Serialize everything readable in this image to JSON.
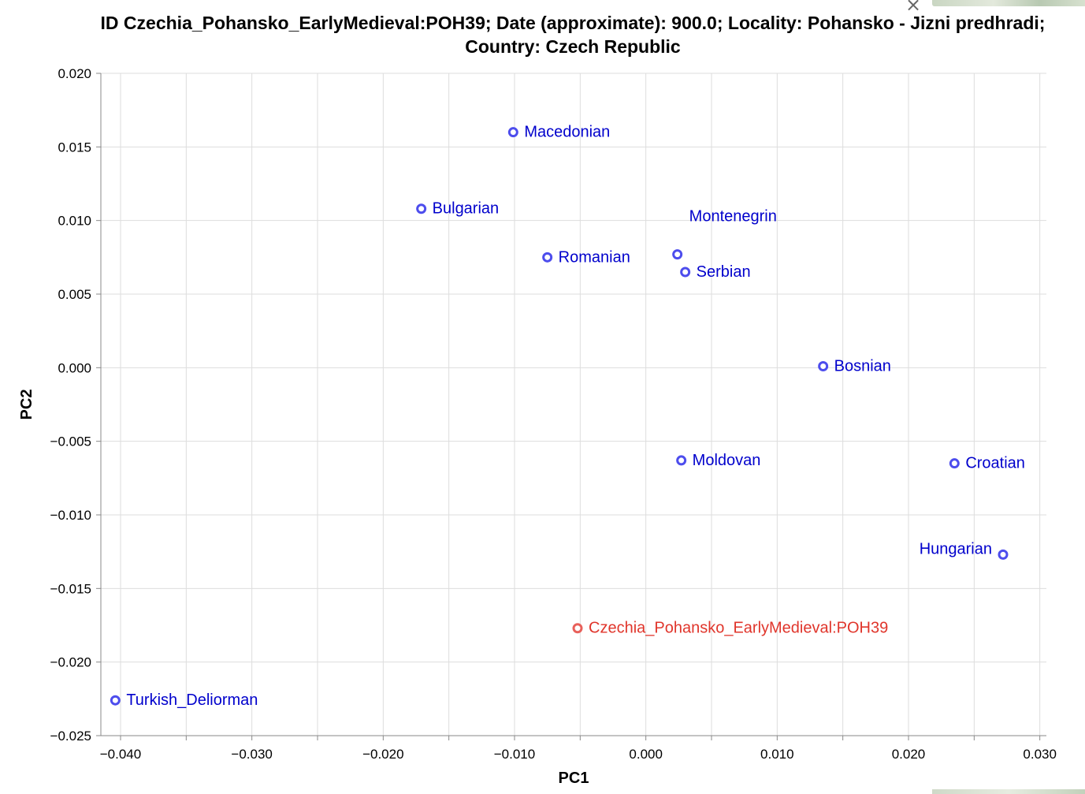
{
  "window": {
    "close_label": "×"
  },
  "chart_data": {
    "type": "scatter",
    "title": "ID Czechia_Pohansko_EarlyMedieval:POH39; Date (approximate): 900.0; Locality: Pohansko - Jizni predhradi; Country: Czech Republic",
    "xlabel": "PC1",
    "ylabel": "PC2",
    "xlim": [
      -0.0415,
      0.0305
    ],
    "ylim": [
      -0.025,
      0.02
    ],
    "xticks": [
      -0.04,
      -0.03,
      -0.02,
      -0.01,
      0.0,
      0.01,
      0.02,
      0.03
    ],
    "xtick_labels": [
      "−0.040",
      "−0.030",
      "−0.020",
      "−0.010",
      "0.000",
      "0.010",
      "0.020",
      "0.030"
    ],
    "yticks": [
      0.02,
      0.015,
      0.01,
      0.005,
      0.0,
      -0.005,
      -0.01,
      -0.015,
      -0.02,
      -0.025
    ],
    "ytick_labels": [
      "0.020",
      "0.015",
      "0.010",
      "0.005",
      "0.000",
      "−0.005",
      "−0.010",
      "−0.015",
      "−0.020",
      "−0.025"
    ],
    "grid": true,
    "colors": {
      "population": "#4d4ded",
      "population_label": "#0000cc",
      "sample": "#e8605a",
      "sample_label": "#e0352b"
    },
    "points": [
      {
        "label": "Macedonian",
        "x": -0.0101,
        "y": 0.016,
        "kind": "population",
        "label_pos": "right"
      },
      {
        "label": "Bulgarian",
        "x": -0.0171,
        "y": 0.0108,
        "kind": "population",
        "label_pos": "right"
      },
      {
        "label": "Romanian",
        "x": -0.0075,
        "y": 0.0075,
        "kind": "population",
        "label_pos": "right"
      },
      {
        "label": "Montenegrin",
        "x": 0.0024,
        "y": 0.0077,
        "kind": "population",
        "label_pos": "above-right"
      },
      {
        "label": "Serbian",
        "x": 0.003,
        "y": 0.0065,
        "kind": "population",
        "label_pos": "right"
      },
      {
        "label": "Bosnian",
        "x": 0.0135,
        "y": 0.0001,
        "kind": "population",
        "label_pos": "right"
      },
      {
        "label": "Moldovan",
        "x": 0.0027,
        "y": -0.0063,
        "kind": "population",
        "label_pos": "right"
      },
      {
        "label": "Croatian",
        "x": 0.0235,
        "y": -0.0065,
        "kind": "population",
        "label_pos": "right"
      },
      {
        "label": "Hungarian",
        "x": 0.0272,
        "y": -0.0127,
        "kind": "population",
        "label_pos": "left"
      },
      {
        "label": "Czechia_Pohansko_EarlyMedieval:POH39",
        "x": -0.0052,
        "y": -0.0177,
        "kind": "sample",
        "label_pos": "right"
      },
      {
        "label": "Turkish_Deliorman",
        "x": -0.0404,
        "y": -0.0226,
        "kind": "population",
        "label_pos": "right"
      }
    ]
  }
}
